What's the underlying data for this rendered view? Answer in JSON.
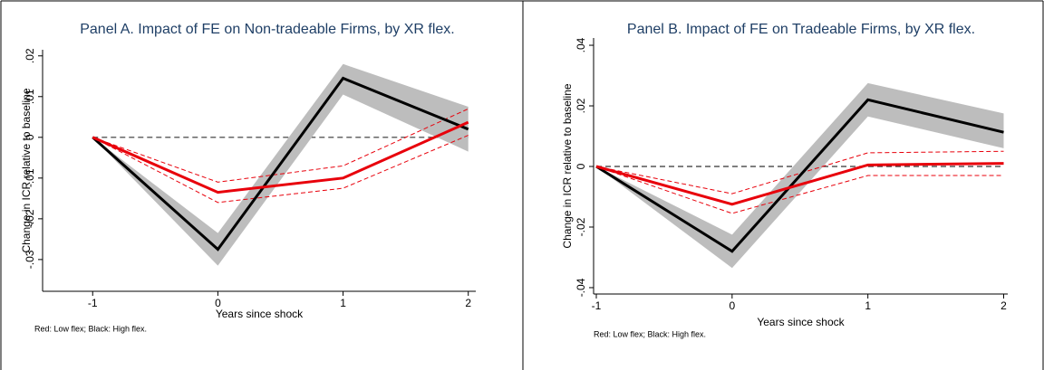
{
  "chart_data": [
    {
      "type": "line",
      "title": "Panel A. Impact of FE on Non-tradeable Firms, by XR flex.",
      "x_label": "Years since shock",
      "y_label": "Change in ICR relative to baseline",
      "note": "Red: Low flex; Black: High flex.",
      "x": [
        -1,
        0,
        1,
        2
      ],
      "xlim": [
        -1.4,
        2.06
      ],
      "xticks": [
        -1,
        0,
        1,
        2
      ],
      "ylim": [
        -0.0378,
        0.0215
      ],
      "yticks": [
        {
          "value": -0.03,
          "label": "-.03"
        },
        {
          "value": -0.02,
          "label": "-.02"
        },
        {
          "value": -0.01,
          "label": "-.01"
        },
        0,
        {
          "value": 0.01,
          "label": ".01"
        },
        {
          "value": 0.02,
          "label": ".02"
        }
      ],
      "reference_line": 0,
      "series": [
        {
          "color": "#000000",
          "band_color": "#bdbdbd",
          "values": [
            0,
            -0.0275,
            0.0145,
            0.002
          ],
          "lower": [
            0,
            -0.0315,
            0.0105,
            -0.0035
          ],
          "upper": [
            0,
            -0.0235,
            0.018,
            0.0075
          ]
        },
        {
          "color": "#e8000b",
          "values": [
            0,
            -0.0135,
            -0.01,
            0.0037
          ],
          "lower": [
            0,
            -0.016,
            -0.0125,
            0.0005
          ],
          "upper": [
            0,
            -0.011,
            -0.007,
            0.007
          ]
        }
      ]
    },
    {
      "type": "line",
      "title": "Panel B. Impact of FE on Tradeable Firms, by XR flex.",
      "x_label": "Years since shock",
      "y_label": "Change in ICR relative to baseline",
      "note": "Red: Low flex; Black: High flex.",
      "x": [
        -1,
        0,
        1,
        2
      ],
      "xlim": [
        -1.02,
        2.03
      ],
      "xticks": [
        -1,
        0,
        1,
        2
      ],
      "ylim": [
        -0.0421,
        0.0424
      ],
      "yticks": [
        {
          "value": -0.04,
          "label": "-.04"
        },
        {
          "value": -0.02,
          "label": "-.02"
        },
        0,
        {
          "value": 0.02,
          "label": ".02"
        },
        {
          "value": 0.04,
          "label": ".04"
        }
      ],
      "reference_line": 0,
      "series": [
        {
          "color": "#000000",
          "band_color": "#bdbdbd",
          "values": [
            0,
            -0.028,
            0.022,
            0.0113
          ],
          "lower": [
            0,
            -0.0335,
            0.0165,
            0.006
          ],
          "upper": [
            0,
            -0.0225,
            0.0275,
            0.0175
          ]
        },
        {
          "color": "#e8000b",
          "values": [
            0,
            -0.0125,
            0.0005,
            0.001
          ],
          "lower": [
            0,
            -0.0155,
            -0.003,
            -0.003
          ],
          "upper": [
            0,
            -0.009,
            0.0045,
            0.005
          ]
        }
      ]
    }
  ]
}
